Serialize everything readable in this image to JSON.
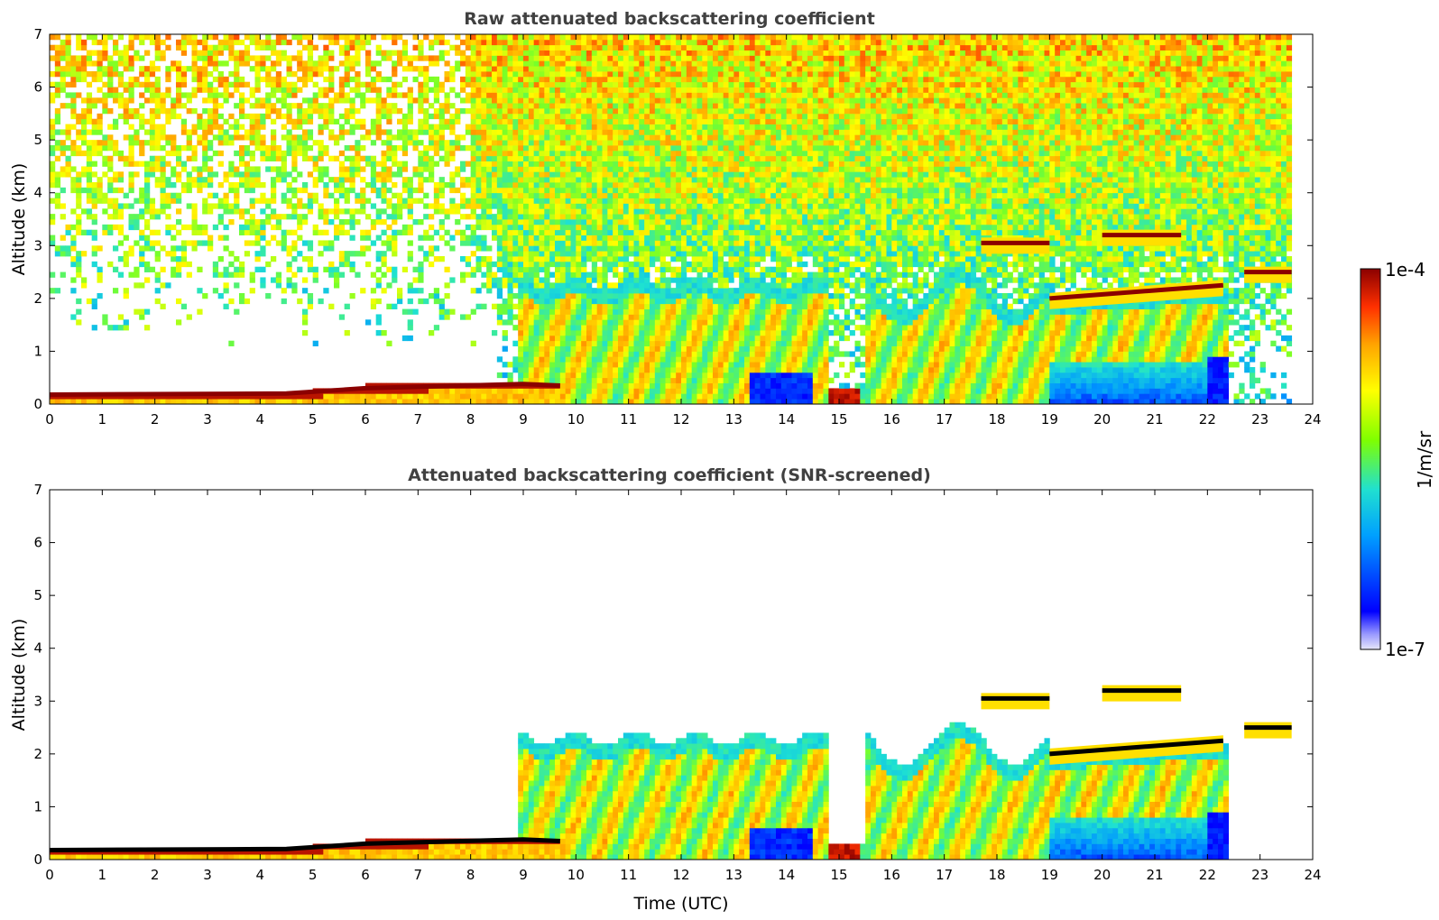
{
  "chart_data": [
    {
      "type": "heatmap",
      "title": "Raw attenuated backscattering coefficient",
      "xlabel": "",
      "ylabel": "Altitude (km)",
      "xlim": [
        0,
        24
      ],
      "ylim": [
        0,
        7
      ],
      "xticks": [
        0,
        1,
        2,
        3,
        4,
        5,
        6,
        7,
        8,
        9,
        10,
        11,
        12,
        13,
        14,
        15,
        16,
        17,
        18,
        19,
        20,
        21,
        22,
        23,
        24
      ],
      "yticks": [
        0,
        1,
        2,
        3,
        4,
        5,
        6,
        7
      ],
      "data_end_hour": 23.6,
      "boundary_layer_top_km": [
        [
          0,
          0.18
        ],
        [
          4.5,
          0.2
        ],
        [
          6,
          0.3
        ],
        [
          9,
          0.38
        ],
        [
          9.7,
          0.35
        ]
      ],
      "cloud_layers": [
        {
          "start": 17.7,
          "end": 19.0,
          "altitude_km": 3.05
        },
        {
          "start": 19.0,
          "end": 22.3,
          "altitude_km": 2.0,
          "altitude_end_km": 2.25
        },
        {
          "start": 20.0,
          "end": 21.5,
          "altitude_km": 3.2
        },
        {
          "start": 22.7,
          "end": 23.6,
          "altitude_km": 2.5
        }
      ],
      "noise": "full"
    },
    {
      "type": "heatmap",
      "title": "Attenuated backscattering coefficient (SNR-screened)",
      "xlabel": "Time (UTC)",
      "ylabel": "Altitude (km)",
      "xlim": [
        0,
        24
      ],
      "ylim": [
        0,
        7
      ],
      "xticks": [
        0,
        1,
        2,
        3,
        4,
        5,
        6,
        7,
        8,
        9,
        10,
        11,
        12,
        13,
        14,
        15,
        16,
        17,
        18,
        19,
        20,
        21,
        22,
        23,
        24
      ],
      "yticks": [
        0,
        1,
        2,
        3,
        4,
        5,
        6,
        7
      ],
      "data_end_hour": 23.6,
      "noise": "screened"
    }
  ],
  "colorbar": {
    "label": "1/m/sr",
    "max_label": "1e-4",
    "min_label": "1e-7",
    "colors": [
      "#e6e6fa",
      "#0000ff",
      "#00c0ff",
      "#40e0d0",
      "#7fff00",
      "#ffff00",
      "#ffa500",
      "#ff4500",
      "#8b0000"
    ]
  }
}
